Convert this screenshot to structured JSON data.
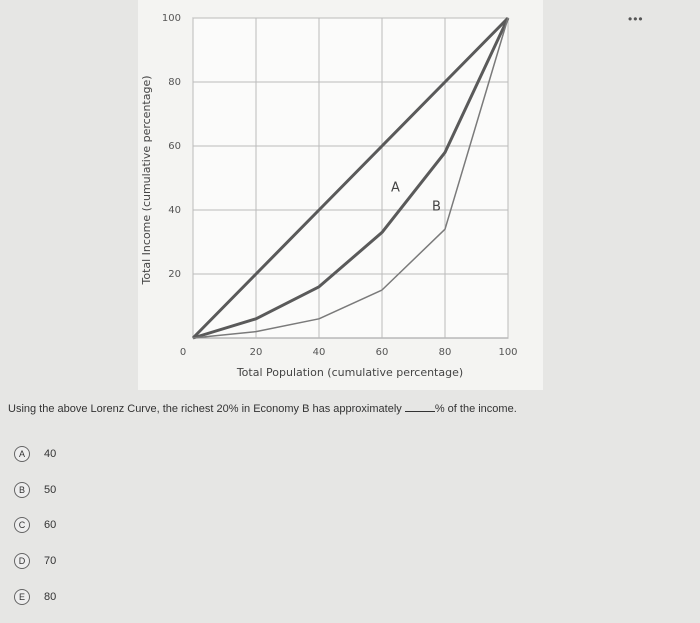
{
  "chart_data": {
    "type": "line",
    "x_label": "Total Population (cumulative percentage)",
    "y_label": "Total Income (cumulative percentage)",
    "x": [
      0,
      20,
      40,
      60,
      80,
      100
    ],
    "series": [
      {
        "color": "#5a5a5a",
        "values": [
          0,
          20,
          40,
          60,
          80,
          100
        ]
      },
      {
        "name": "A",
        "color": "#5a5a5a",
        "values": [
          0,
          6,
          16,
          33,
          58,
          100
        ]
      },
      {
        "name": "B",
        "color": "#7a7a7a",
        "values": [
          0,
          2,
          6,
          15,
          34,
          100
        ]
      }
    ],
    "xlim": [
      0,
      100
    ],
    "ylim": [
      0,
      100
    ],
    "xticks": [
      0,
      20,
      40,
      60,
      80,
      100
    ],
    "yticks": [
      20,
      40,
      60,
      80,
      100
    ],
    "grid": true
  },
  "question": {
    "text_before": "Using the above Lorenz Curve, the richest 20% in Economy B has approximately",
    "text_after": "% of the income."
  },
  "options": [
    {
      "letter": "A",
      "text": "40"
    },
    {
      "letter": "B",
      "text": "50"
    },
    {
      "letter": "C",
      "text": "60"
    },
    {
      "letter": "D",
      "text": "70"
    },
    {
      "letter": "E",
      "text": "80"
    }
  ]
}
